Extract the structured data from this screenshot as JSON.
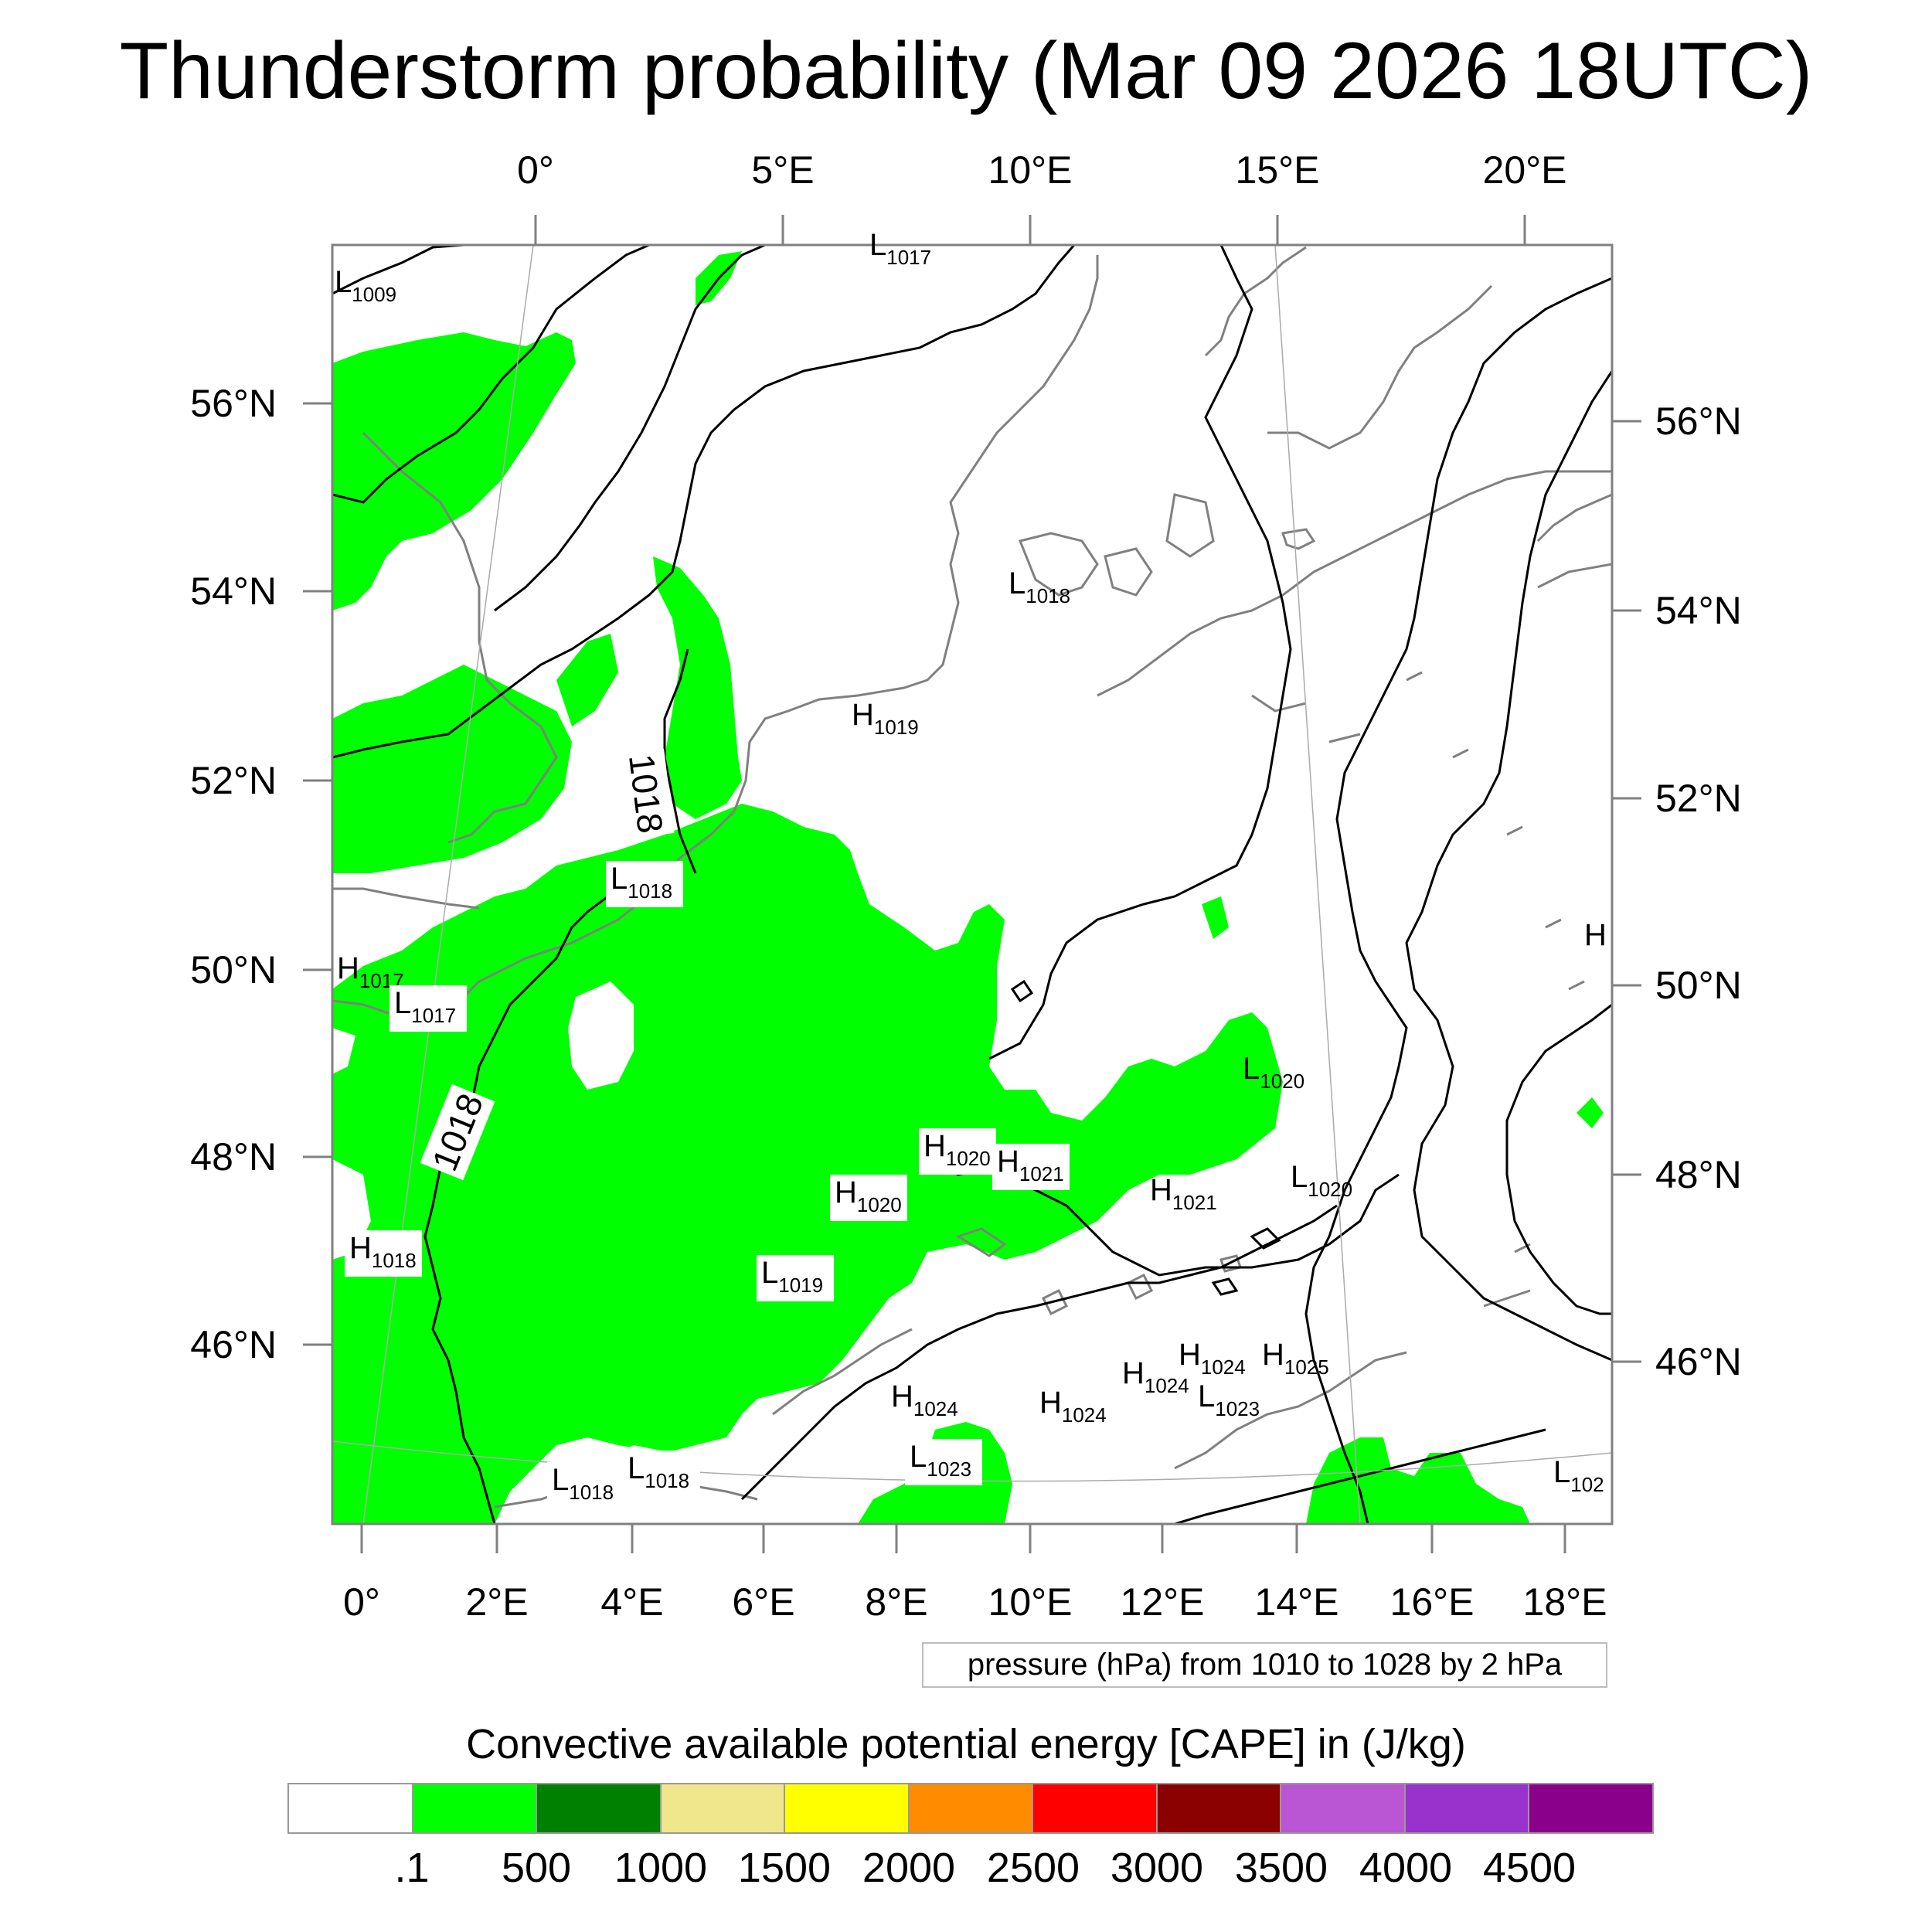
{
  "title": "Thunderstorm probability (Mar 09 2026 18UTC)",
  "axes": {
    "top": [
      "0°",
      "5°E",
      "10°E",
      "15°E",
      "20°E"
    ],
    "bottom": [
      "0°",
      "2°E",
      "4°E",
      "6°E",
      "8°E",
      "10°E",
      "12°E",
      "14°E",
      "16°E",
      "18°E"
    ],
    "left": [
      "56°N",
      "54°N",
      "52°N",
      "50°N",
      "48°N",
      "46°N"
    ],
    "right": [
      "56°N",
      "54°N",
      "52°N",
      "50°N",
      "48°N",
      "46°N"
    ]
  },
  "contour_note": "pressure (hPa) from 1010 to 1028 by 2 hPa",
  "legend": {
    "title": "Convective available potential energy [CAPE] in (J/kg)",
    "levels": [
      ".1",
      "500",
      "1000",
      "1500",
      "2000",
      "2500",
      "3000",
      "3500",
      "4000",
      "4500"
    ],
    "colors": [
      "#ffffff",
      "#00ff00",
      "#008000",
      "#f0e68c",
      "#ffff00",
      "#ff8c00",
      "#ff0000",
      "#8b0000",
      "#ba55d3",
      "#9932cc",
      "#8b008b"
    ]
  },
  "contour_labels": [
    {
      "value": "1018"
    },
    {
      "value": "1018"
    }
  ],
  "pressure_centers": [
    {
      "type": "L",
      "value": "1009"
    },
    {
      "type": "L",
      "value": "1017"
    },
    {
      "type": "L",
      "value": "1018"
    },
    {
      "type": "H",
      "value": "1019"
    },
    {
      "type": "L",
      "value": "1018"
    },
    {
      "type": "H",
      "value": "1017"
    },
    {
      "type": "L",
      "value": "1017"
    },
    {
      "type": "L",
      "value": "1020"
    },
    {
      "type": "H",
      "value": "1020"
    },
    {
      "type": "H",
      "value": "1021"
    },
    {
      "type": "H",
      "value": "1020"
    },
    {
      "type": "H",
      "value": "1021"
    },
    {
      "type": "L",
      "value": "1020"
    },
    {
      "type": "H",
      "value": "1018"
    },
    {
      "type": "L",
      "value": "1019"
    },
    {
      "type": "H",
      "value": "1024"
    },
    {
      "type": "H",
      "value": "1024"
    },
    {
      "type": "H",
      "value": "1025"
    },
    {
      "type": "H",
      "value": "1024"
    },
    {
      "type": "H",
      "value": "1024"
    },
    {
      "type": "L",
      "value": "1023"
    },
    {
      "type": "L",
      "value": "1023"
    },
    {
      "type": "L",
      "value": "1018"
    },
    {
      "type": "L",
      "value": "1018"
    },
    {
      "type": "L",
      "value": "102"
    },
    {
      "type": "H",
      "value": ""
    }
  ],
  "colors": {
    "cape_fill": "#00ff00",
    "coastline": "#808080",
    "isobar": "#000000",
    "frame": "#808080"
  }
}
